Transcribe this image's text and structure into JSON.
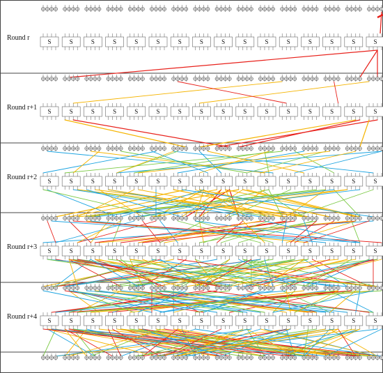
{
  "rounds": [
    {
      "label": "Round r"
    },
    {
      "label": "Round r+1"
    },
    {
      "label": "Round r+2"
    },
    {
      "label": "Round r+3"
    },
    {
      "label": "Round r+4"
    }
  ],
  "sbox_label": "S",
  "sbox_count": 16,
  "colors": {
    "red": "#e8201a",
    "orange": "#f5b400",
    "blue": "#1aa3e0",
    "green": "#7ac943",
    "border": "#444444",
    "bit_stroke": "#555555"
  },
  "active_trail": [
    [
      {
        "from": 15,
        "to": 1,
        "color": "red"
      },
      {
        "from": 15,
        "to": 14,
        "color": "red"
      },
      {
        "from": 15,
        "to": 15,
        "color": "red"
      }
    ],
    [
      {
        "from": 1,
        "to": 6,
        "color": "orange"
      },
      {
        "from": 1,
        "to": 8,
        "color": "red"
      },
      {
        "from": 14,
        "to": 7,
        "color": "orange"
      },
      {
        "from": 14,
        "to": 9,
        "color": "red"
      },
      {
        "from": 15,
        "to": 8,
        "color": "red"
      },
      {
        "from": 15,
        "to": 14,
        "color": "orange"
      }
    ],
    [
      {
        "from": 6,
        "to": 0,
        "color": "orange"
      },
      {
        "from": 6,
        "to": 12,
        "color": "orange"
      },
      {
        "from": 7,
        "to": 5,
        "color": "orange"
      },
      {
        "from": 7,
        "to": 13,
        "color": "orange"
      },
      {
        "from": 8,
        "to": 6,
        "color": "red"
      },
      {
        "from": 8,
        "to": 7,
        "color": "red"
      },
      {
        "from": 8,
        "to": 9,
        "color": "red"
      },
      {
        "from": 9,
        "to": 2,
        "color": "orange"
      },
      {
        "from": 9,
        "to": 14,
        "color": "orange"
      }
    ]
  ]
}
